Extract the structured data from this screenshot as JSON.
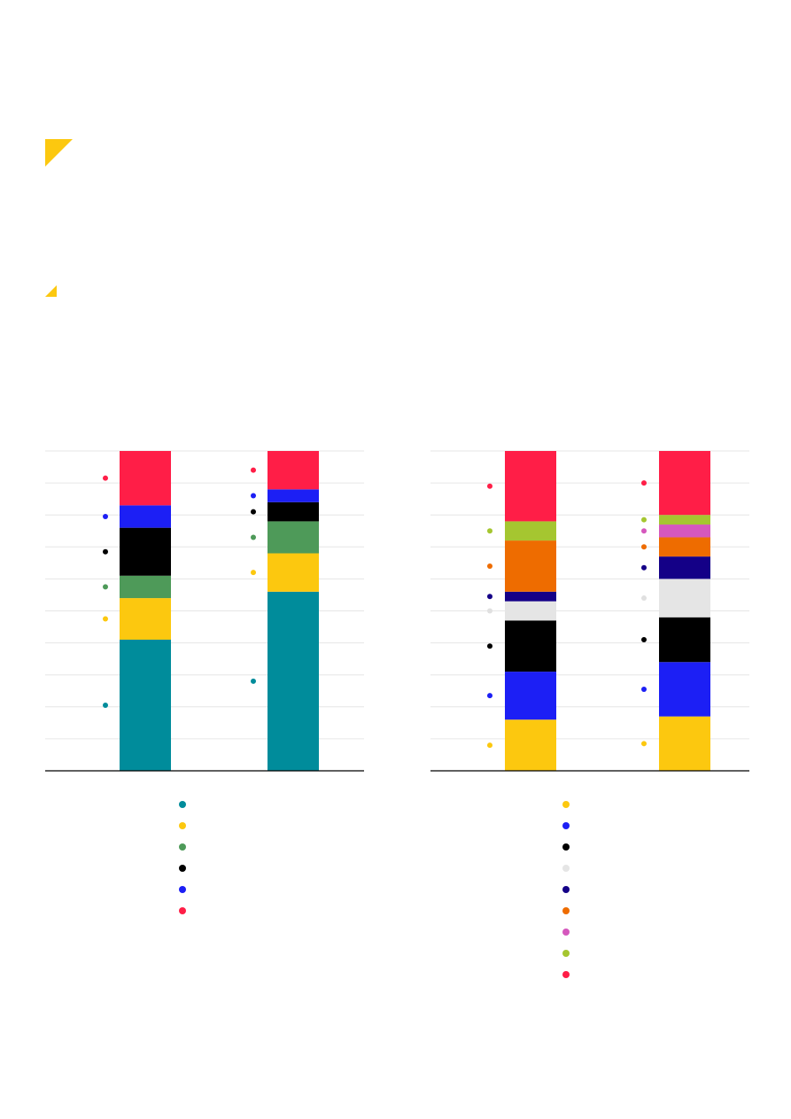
{
  "decor": {
    "accent": "#fcc80f"
  },
  "chart_data": [
    {
      "type": "bar",
      "stacked": true,
      "percent": true,
      "categories": [
        "",
        ""
      ],
      "ylim": [
        0,
        100
      ],
      "grid": true,
      "legend_position": "bottom",
      "series": [
        {
          "color": "#008c9b",
          "values": [
            41,
            56
          ]
        },
        {
          "color": "#fcc80f",
          "values": [
            13,
            12
          ]
        },
        {
          "color": "#4e9a59",
          "values": [
            7,
            10
          ]
        },
        {
          "color": "#000000",
          "values": [
            15,
            6
          ]
        },
        {
          "color": "#1c1ff5",
          "values": [
            7,
            4
          ]
        },
        {
          "color": "#ff1e47",
          "values": [
            17,
            12
          ]
        }
      ]
    },
    {
      "type": "bar",
      "stacked": true,
      "percent": true,
      "categories": [
        "",
        ""
      ],
      "ylim": [
        0,
        100
      ],
      "grid": true,
      "legend_position": "bottom",
      "series": [
        {
          "color": "#fcc80f",
          "values": [
            16,
            17
          ]
        },
        {
          "color": "#1c1ff5",
          "values": [
            15,
            17
          ]
        },
        {
          "color": "#000000",
          "values": [
            16,
            14
          ]
        },
        {
          "color": "#e5e5e5",
          "values": [
            6,
            12
          ]
        },
        {
          "color": "#140087",
          "values": [
            3,
            7
          ]
        },
        {
          "color": "#ee6c00",
          "values": [
            16,
            6
          ]
        },
        {
          "color": "#d558bd",
          "values": [
            0,
            4
          ]
        },
        {
          "color": "#a5c630",
          "values": [
            6,
            3
          ]
        },
        {
          "color": "#ff1e47",
          "values": [
            22,
            20
          ]
        }
      ]
    }
  ]
}
